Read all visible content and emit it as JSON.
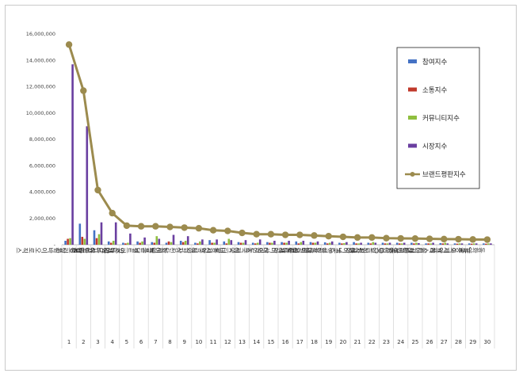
{
  "chart_data": {
    "type": "bar",
    "categories": [
      "삼성바이오로직스",
      "셀트리온",
      "유한양행",
      "SK바이오팜",
      "SK바이오사이언스",
      "셀트리온제약",
      "종근당",
      "한미약품",
      "삼천당제약",
      "녹십자",
      "신풍제약",
      "대웅제약",
      "에스티팜",
      "동국제약",
      "대웅",
      "한미사이언스",
      "일동제약",
      "대원제약",
      "한올바이오파마",
      "HLB생명과학",
      "바이넥스",
      "보령제약",
      "GC녹십자엠",
      "HK이노엔",
      "삼일제약",
      "삼아제약",
      "프레스티지바이오파마",
      "국제약품",
      "JW중외제약",
      "동화약품"
    ],
    "category_numbers": [
      "1",
      "2",
      "3",
      "4",
      "5",
      "6",
      "7",
      "8",
      "9",
      "10",
      "11",
      "12",
      "13",
      "14",
      "15",
      "16",
      "17",
      "18",
      "19",
      "20",
      "21",
      "22",
      "23",
      "24",
      "25",
      "26",
      "27",
      "28",
      "29",
      "30"
    ],
    "ylim": [
      0,
      16000000
    ],
    "ytick_labels": [
      "-",
      "2,000,000",
      "4,000,000",
      "6,000,000",
      "8,000,000",
      "10,000,000",
      "12,000,000",
      "14,000,000",
      "16,000,000"
    ],
    "series": [
      {
        "name": "참여지수",
        "color": "#4472c4",
        "kind": "bar",
        "values": [
          300000,
          1600000,
          1100000,
          250000,
          150000,
          250000,
          200000,
          150000,
          300000,
          150000,
          350000,
          250000,
          200000,
          150000,
          200000,
          200000,
          250000,
          200000,
          180000,
          150000,
          200000,
          150000,
          150000,
          150000,
          150000,
          100000,
          120000,
          100000,
          100000,
          100000
        ]
      },
      {
        "name": "소통지수",
        "color": "#c0392b",
        "kind": "bar",
        "values": [
          450000,
          600000,
          500000,
          150000,
          100000,
          150000,
          150000,
          250000,
          200000,
          100000,
          150000,
          100000,
          150000,
          100000,
          150000,
          150000,
          100000,
          150000,
          100000,
          100000,
          100000,
          100000,
          100000,
          100000,
          100000,
          100000,
          100000,
          80000,
          80000,
          80000
        ]
      },
      {
        "name": "커뮤니티지수",
        "color": "#8fbf3f",
        "kind": "bar",
        "values": [
          500000,
          450000,
          800000,
          300000,
          150000,
          250000,
          650000,
          200000,
          300000,
          250000,
          150000,
          450000,
          150000,
          150000,
          150000,
          150000,
          200000,
          150000,
          150000,
          120000,
          100000,
          200000,
          100000,
          100000,
          150000,
          100000,
          150000,
          100000,
          100000,
          100000
        ]
      },
      {
        "name": "시장지수",
        "color": "#6a3fa0",
        "kind": "bar",
        "values": [
          13700000,
          9000000,
          1700000,
          1700000,
          850000,
          550000,
          450000,
          750000,
          650000,
          400000,
          400000,
          350000,
          350000,
          400000,
          300000,
          300000,
          300000,
          250000,
          250000,
          200000,
          150000,
          150000,
          150000,
          150000,
          120000,
          150000,
          100000,
          100000,
          100000,
          100000
        ]
      },
      {
        "name": "브랜드평판지수",
        "color": "#9c8b4e",
        "kind": "line",
        "values": [
          15200000,
          11700000,
          4150000,
          2400000,
          1450000,
          1400000,
          1400000,
          1350000,
          1300000,
          1250000,
          1100000,
          1050000,
          900000,
          800000,
          800000,
          750000,
          750000,
          700000,
          650000,
          600000,
          550000,
          550000,
          500000,
          480000,
          470000,
          450000,
          430000,
          420000,
          400000,
          390000
        ]
      }
    ],
    "legend_position": "top-right",
    "grid": false
  }
}
